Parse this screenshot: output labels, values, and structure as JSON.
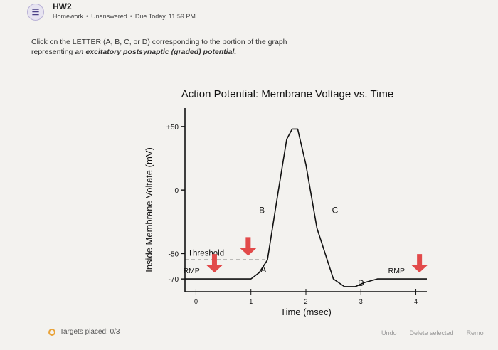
{
  "header": {
    "title": "HW2",
    "breadcrumb": [
      "Homework",
      "Unanswered",
      "Due Today, 11:59 PM"
    ]
  },
  "question": {
    "line1": "Click on the LETTER (A, B, C, or D) corresponding to the portion of the graph",
    "line2_prefix": "representing ",
    "line2_emphasis": "an excitatory postsynaptic (graded) potential."
  },
  "chart_data": {
    "type": "line",
    "title": "Action Potential: Membrane Voltage vs. Time",
    "xlabel": "Time (msec)",
    "ylabel": "Inside Membrane Voltate (mV)",
    "x_ticks": [
      "0",
      "1",
      "2",
      "3",
      "4"
    ],
    "y_ticks": [
      "+50",
      "0",
      "-50",
      "-70"
    ],
    "y_values": [
      50,
      0,
      -50,
      -70
    ],
    "xlim": [
      -0.2,
      4.2
    ],
    "ylim": [
      -80,
      60
    ],
    "series": [
      {
        "x": [
          -0.2,
          0.5,
          1.0,
          1.15,
          1.3,
          1.5,
          1.65,
          1.75,
          1.85,
          2.0,
          2.2,
          2.5,
          2.7,
          2.9,
          3.05,
          3.3,
          3.8,
          4.2
        ],
        "y": [
          -70,
          -70,
          -70,
          -65,
          -55,
          0,
          40,
          48,
          48,
          20,
          -30,
          -70,
          -76,
          -76,
          -73,
          -70,
          -70,
          -70
        ]
      }
    ],
    "threshold": {
      "label": "Threshold",
      "value": -55
    },
    "rmp_labels": [
      {
        "label": "RMP",
        "x": 0
      },
      {
        "label": "RMP",
        "x": 3.6
      }
    ],
    "region_labels": [
      {
        "label": "A",
        "x": 1.15,
        "y": -65
      },
      {
        "label": "B",
        "x": 1.2,
        "y": -18
      },
      {
        "label": "C",
        "x": 2.4,
        "y": -18
      },
      {
        "label": "D",
        "x": 2.95,
        "y": -70
      }
    ],
    "arrow_color": "#e24a4a"
  },
  "footer": {
    "targets": "Targets placed: 0/3",
    "actions": [
      "Undo",
      "Delete selected",
      "Remo"
    ]
  }
}
